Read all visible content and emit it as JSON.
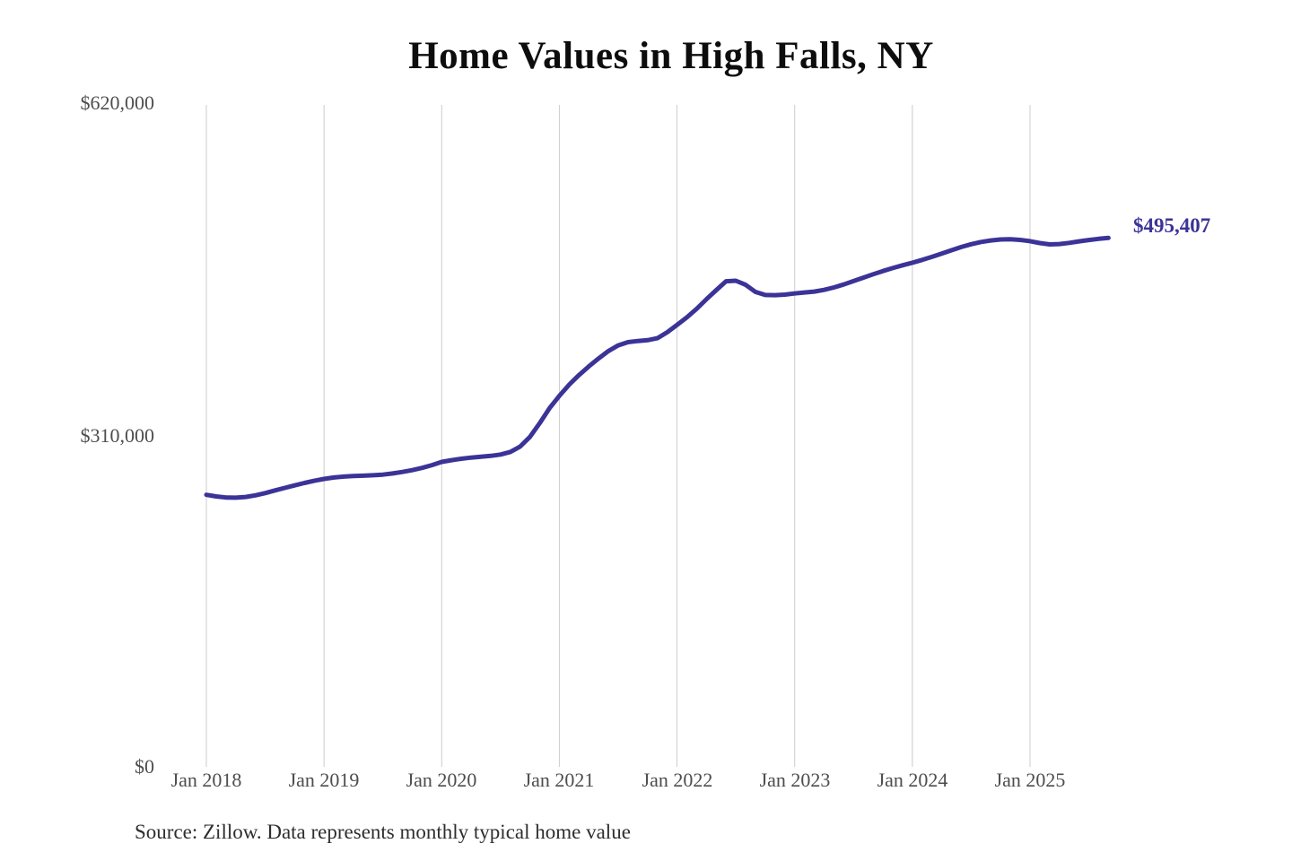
{
  "title": "Home Values in High Falls, NY",
  "source_note": "Source: Zillow. Data represents monthly typical home value",
  "end_label": "$495,407",
  "colors": {
    "line": "#3b3397",
    "grid": "#cccccc",
    "axis_text": "#4d4d4d",
    "title_text": "#0d0d0d",
    "source_text": "#2e2e2e",
    "background": "#ffffff"
  },
  "chart_data": {
    "type": "line",
    "title": "Home Values in High Falls, NY",
    "xlabel": "",
    "ylabel": "",
    "ylim": [
      0,
      620000
    ],
    "y_tick_labels": [
      "$0",
      "$310,000",
      "$620,000"
    ],
    "y_tick_values": [
      0,
      310000,
      620000
    ],
    "x_tick_labels": [
      "Jan 2018",
      "Jan 2019",
      "Jan 2020",
      "Jan 2021",
      "Jan 2022",
      "Jan 2023",
      "Jan 2024",
      "Jan 2025"
    ],
    "grid": "vertical-only",
    "legend": "none",
    "x_start_month": "2018-01",
    "x_end_month": "2025-09",
    "end_annotation": "$495,407",
    "latest_value": 495407,
    "series": [
      {
        "name": "Monthly typical home value",
        "values": [
          254800,
          253300,
          252300,
          252100,
          252800,
          254300,
          256400,
          258900,
          261300,
          263600,
          265900,
          267900,
          269700,
          271000,
          271900,
          272400,
          272700,
          273100,
          273700,
          274800,
          276200,
          277900,
          280000,
          282600,
          285600,
          287200,
          288600,
          289700,
          290500,
          291300,
          292500,
          295000,
          300000,
          309000,
          322000,
          336000,
          347500,
          358000,
          367000,
          375000,
          382500,
          389500,
          394800,
          397800,
          398900,
          399600,
          401500,
          407000,
          414000,
          421000,
          429000,
          438000,
          446500,
          454800,
          455300,
          451500,
          444800,
          442000,
          441800,
          442300,
          443400,
          444300,
          445200,
          446800,
          449000,
          451800,
          455000,
          458200,
          461400,
          464400,
          467200,
          469800,
          472200,
          474800,
          477700,
          480800,
          483900,
          486900,
          489500,
          491600,
          493100,
          494000,
          494200,
          493600,
          492400,
          490600,
          489400,
          489700,
          490800,
          492200,
          493500,
          494600,
          495407
        ]
      }
    ]
  }
}
